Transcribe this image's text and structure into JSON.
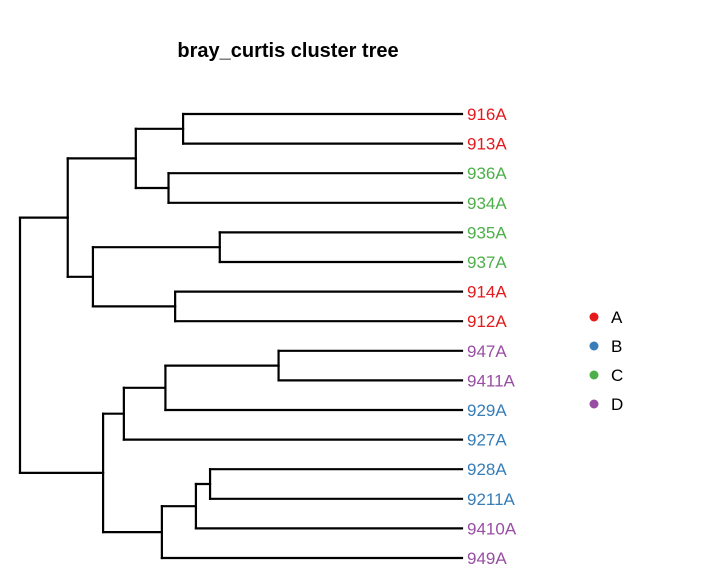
{
  "chart_data": {
    "type": "dendrogram",
    "title": "bray_curtis cluster tree",
    "colors": {
      "A": "#e41a1c",
      "B": "#377eb8",
      "C": "#4daf4a",
      "D": "#984ea3"
    },
    "tips": [
      {
        "label": "916A",
        "group": "A"
      },
      {
        "label": "913A",
        "group": "A"
      },
      {
        "label": "936A",
        "group": "C"
      },
      {
        "label": "934A",
        "group": "C"
      },
      {
        "label": "935A",
        "group": "C"
      },
      {
        "label": "937A",
        "group": "C"
      },
      {
        "label": "914A",
        "group": "A"
      },
      {
        "label": "912A",
        "group": "A"
      },
      {
        "label": "947A",
        "group": "D"
      },
      {
        "label": "9411A",
        "group": "D"
      },
      {
        "label": "929A",
        "group": "B"
      },
      {
        "label": "927A",
        "group": "B"
      },
      {
        "label": "928A",
        "group": "B"
      },
      {
        "label": "9211A",
        "group": "B"
      },
      {
        "label": "9410A",
        "group": "D"
      },
      {
        "label": "949A",
        "group": "D"
      }
    ],
    "tree": {
      "height": 1.0,
      "children": [
        {
          "height": 0.892,
          "children": [
            {
              "height": 0.738,
              "children": [
                {
                  "height": 0.631,
                  "children": [
                    {
                      "tip": 0
                    },
                    {
                      "tip": 1
                    }
                  ]
                },
                {
                  "height": 0.664,
                  "children": [
                    {
                      "tip": 2
                    },
                    {
                      "tip": 3
                    }
                  ]
                }
              ]
            },
            {
              "height": 0.835,
              "children": [
                {
                  "height": 0.548,
                  "children": [
                    {
                      "tip": 4
                    },
                    {
                      "tip": 5
                    }
                  ]
                },
                {
                  "height": 0.649,
                  "children": [
                    {
                      "tip": 6
                    },
                    {
                      "tip": 7
                    }
                  ]
                }
              ]
            }
          ]
        },
        {
          "height": 0.812,
          "children": [
            {
              "height": 0.765,
              "children": [
                {
                  "height": 0.671,
                  "children": [
                    {
                      "height": 0.415,
                      "children": [
                        {
                          "tip": 8
                        },
                        {
                          "tip": 9
                        }
                      ]
                    },
                    {
                      "tip": 10
                    }
                  ]
                },
                {
                  "tip": 11
                }
              ]
            },
            {
              "height": 0.679,
              "children": [
                {
                  "height": 0.602,
                  "children": [
                    {
                      "height": 0.57,
                      "children": [
                        {
                          "tip": 12
                        },
                        {
                          "tip": 13
                        }
                      ]
                    },
                    {
                      "tip": 14
                    }
                  ]
                },
                {
                  "tip": 15
                }
              ]
            }
          ]
        }
      ]
    },
    "legend": {
      "position": "right",
      "entries": [
        {
          "label": "A",
          "color": "#e41a1c"
        },
        {
          "label": "B",
          "color": "#377eb8"
        },
        {
          "label": "C",
          "color": "#4daf4a"
        },
        {
          "label": "D",
          "color": "#984ea3"
        }
      ]
    }
  }
}
